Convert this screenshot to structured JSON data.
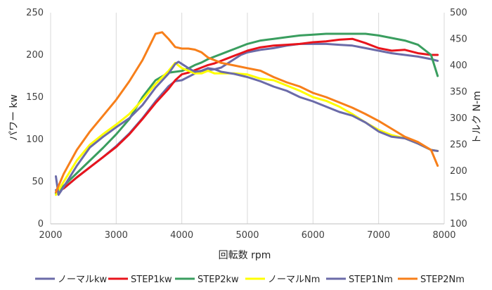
{
  "chart_data": {
    "type": "line",
    "xlabel": "回転数 rpm",
    "ylabel_left": "パワー kw",
    "ylabel_right": "トルク N-m",
    "xlim": [
      2000,
      8000
    ],
    "ylim_left": [
      0,
      250
    ],
    "ylim_right": [
      100,
      500
    ],
    "x_ticks": [
      "2000",
      "3000",
      "4000",
      "5000",
      "6000",
      "7000",
      "8000"
    ],
    "y_ticks_left": [
      "0",
      "50",
      "100",
      "150",
      "200",
      "250"
    ],
    "y_ticks_right": [
      "100",
      "150",
      "200",
      "250",
      "300",
      "350",
      "400",
      "450",
      "500"
    ],
    "grid": "vertical",
    "legend_position": "bottom",
    "series": [
      {
        "name": "ノーマルkw",
        "axis": "left",
        "color": "#6b6ba8",
        "x": [
          2080,
          2200,
          2400,
          2600,
          2800,
          3000,
          3200,
          3400,
          3600,
          3800,
          3900,
          4000,
          4100,
          4200,
          4300,
          4400,
          4500,
          4600,
          4700,
          4800,
          4900,
          5000,
          5200,
          5400,
          5600,
          5800,
          6000,
          6200,
          6400,
          6600,
          6800,
          7000,
          7200,
          7400,
          7600,
          7800,
          7900
        ],
        "y": [
          40,
          42,
          55,
          67,
          79,
          92,
          107,
          125,
          145,
          163,
          169,
          170,
          174,
          178,
          181,
          182,
          183,
          185,
          190,
          195,
          200,
          203,
          206,
          208,
          211,
          213,
          213,
          213,
          212,
          211,
          208,
          205,
          202,
          200,
          198,
          195,
          193
        ]
      },
      {
        "name": "STEP1kw",
        "axis": "left",
        "color": "#e8141c",
        "x": [
          2080,
          2200,
          2400,
          2600,
          2800,
          3000,
          3200,
          3400,
          3600,
          3800,
          3900,
          4000,
          4100,
          4200,
          4300,
          4400,
          4500,
          4600,
          4700,
          4800,
          4900,
          5000,
          5200,
          5400,
          5600,
          5800,
          6000,
          6200,
          6400,
          6600,
          6800,
          7000,
          7200,
          7400,
          7600,
          7800,
          7900
        ],
        "y": [
          37,
          42,
          55,
          67,
          79,
          91,
          106,
          124,
          143,
          160,
          170,
          177,
          179,
          182,
          185,
          188,
          190,
          193,
          196,
          199,
          202,
          205,
          209,
          211,
          212,
          213,
          215,
          216,
          218,
          219,
          214,
          208,
          205,
          206,
          202,
          200,
          200
        ]
      },
      {
        "name": "STEP2kw",
        "axis": "left",
        "color": "#3a9e5f",
        "x": [
          2080,
          2200,
          2400,
          2600,
          2800,
          3000,
          3200,
          3400,
          3600,
          3800,
          3900,
          4000,
          4100,
          4200,
          4300,
          4400,
          4500,
          4600,
          4700,
          4800,
          4900,
          5000,
          5200,
          5400,
          5600,
          5800,
          6000,
          6200,
          6400,
          6600,
          6800,
          7000,
          7200,
          7400,
          7600,
          7800,
          7900
        ],
        "y": [
          36,
          45,
          60,
          75,
          90,
          106,
          124,
          150,
          170,
          179,
          180,
          181,
          184,
          188,
          191,
          195,
          198,
          201,
          204,
          207,
          210,
          213,
          217,
          219,
          221,
          223,
          224,
          225,
          225,
          225,
          225,
          223,
          220,
          217,
          212,
          200,
          175
        ]
      },
      {
        "name": "ノーマルNm",
        "axis": "right",
        "color": "#ffff00",
        "x": [
          2080,
          2200,
          2400,
          2600,
          2800,
          3000,
          3200,
          3400,
          3600,
          3800,
          3900,
          4000,
          4100,
          4200,
          4300,
          4400,
          4500,
          4600,
          4800,
          5000,
          5200,
          5400,
          5600,
          5800,
          6000,
          6200,
          6400,
          6600,
          6800,
          7000,
          7200,
          7400,
          7600,
          7800,
          7900
        ],
        "y": [
          155,
          180,
          220,
          250,
          270,
          288,
          308,
          335,
          365,
          390,
          405,
          395,
          390,
          385,
          385,
          390,
          385,
          385,
          385,
          383,
          375,
          372,
          362,
          352,
          340,
          333,
          322,
          308,
          292,
          278,
          268,
          262,
          252,
          240,
          238
        ]
      },
      {
        "name": "STEP1Nm",
        "axis": "right",
        "color": "#6b6ba8",
        "x": [
          2080,
          2120,
          2200,
          2400,
          2600,
          2800,
          3000,
          3200,
          3400,
          3600,
          3800,
          3900,
          3950,
          4000,
          4100,
          4200,
          4300,
          4400,
          4500,
          4600,
          4800,
          5000,
          5200,
          5400,
          5600,
          5800,
          6000,
          6200,
          6400,
          6600,
          6800,
          7000,
          7200,
          7400,
          7600,
          7800,
          7900
        ],
        "y": [
          190,
          155,
          170,
          210,
          245,
          265,
          283,
          300,
          325,
          358,
          385,
          403,
          407,
          403,
          395,
          388,
          390,
          395,
          393,
          388,
          384,
          378,
          370,
          360,
          352,
          340,
          332,
          322,
          312,
          305,
          292,
          275,
          265,
          262,
          252,
          240,
          238
        ]
      },
      {
        "name": "STEP2Nm",
        "axis": "right",
        "color": "#f77f1a",
        "x": [
          2080,
          2200,
          2400,
          2600,
          2800,
          3000,
          3200,
          3400,
          3500,
          3600,
          3700,
          3800,
          3900,
          4000,
          4100,
          4200,
          4300,
          4400,
          4600,
          4800,
          5000,
          5200,
          5400,
          5600,
          5800,
          6000,
          6200,
          6400,
          6600,
          6800,
          7000,
          7200,
          7400,
          7600,
          7800,
          7900
        ],
        "y": [
          160,
          195,
          240,
          275,
          305,
          335,
          370,
          410,
          435,
          460,
          463,
          450,
          435,
          432,
          432,
          430,
          425,
          415,
          405,
          400,
          395,
          390,
          378,
          368,
          360,
          348,
          340,
          330,
          320,
          308,
          295,
          280,
          265,
          255,
          240,
          210
        ]
      }
    ]
  }
}
